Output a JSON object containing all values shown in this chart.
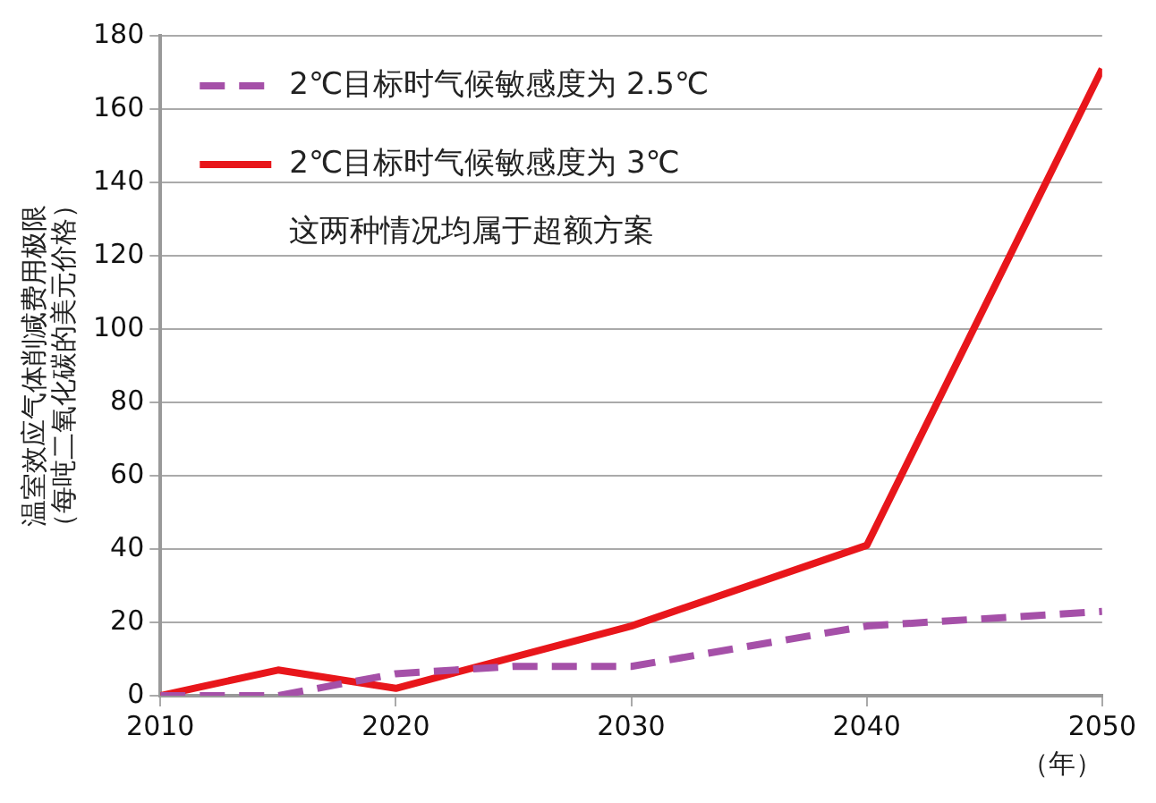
{
  "chart_data": {
    "type": "line",
    "xlabel": "（年）",
    "ylabel": "温室效应气体削减费用极限（每吨二氧化碳的美元价格）",
    "x": [
      2010,
      2015,
      2020,
      2025,
      2030,
      2040,
      2050
    ],
    "series": [
      {
        "name": "2℃目标时气候敏感度为 2.5℃",
        "color": "#a550a8",
        "line_style": "dashed",
        "values": [
          0,
          0,
          6,
          8,
          8,
          19,
          23
        ]
      },
      {
        "name": "2℃目标时气候敏感度为 3℃",
        "color": "#e8161b",
        "line_style": "solid",
        "x": [
          2010,
          2015,
          2020,
          2030,
          2040,
          2050
        ],
        "values": [
          0,
          7,
          2,
          19,
          41,
          171
        ]
      }
    ],
    "annotations": [
      "这两种情况均属于超额方案"
    ],
    "xlim": [
      2010,
      2050
    ],
    "xticks": [
      2010,
      2020,
      2030,
      2040,
      2050
    ],
    "ylim": [
      0,
      180
    ],
    "yticks": [
      0,
      20,
      40,
      60,
      80,
      100,
      120,
      140,
      160,
      180
    ],
    "grid": "y",
    "legend": "top left",
    "marker": "none"
  }
}
